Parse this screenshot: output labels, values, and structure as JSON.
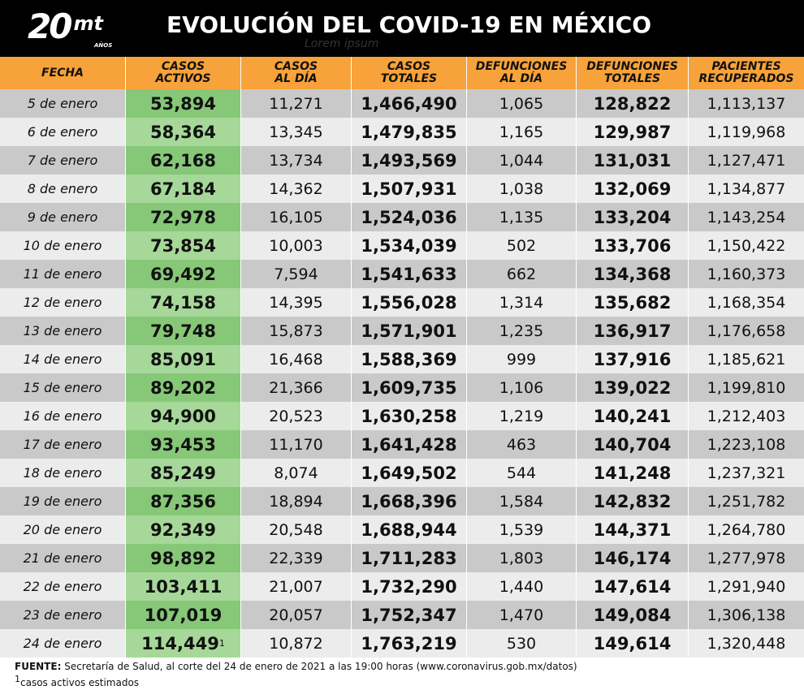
{
  "header": {
    "logo_number": "20",
    "logo_text": "mt",
    "logo_sub": "AÑOS",
    "title": "EVOLUCIÓN DEL COVID-19 EN MÉXICO",
    "subtitle": "Lorem ipsum"
  },
  "table": {
    "columns": [
      "FECHA",
      "CASOS\nACTIVOS",
      "CASOS\nAL DÍA",
      "CASOS\nTOTALES",
      "DEFUNCIONES\nAL DÍA",
      "DEFUNCIONES\nTOTALES",
      "PACIENTES\nRECUPERADOS"
    ],
    "rows": [
      [
        "5 de enero",
        "53,894",
        "11,271",
        "1,466,490",
        "1,065",
        "128,822",
        "1,113,137"
      ],
      [
        "6 de enero",
        "58,364",
        "13,345",
        "1,479,835",
        "1,165",
        "129,987",
        "1,119,968"
      ],
      [
        "7 de enero",
        "62,168",
        "13,734",
        "1,493,569",
        "1,044",
        "131,031",
        "1,127,471"
      ],
      [
        "8 de enero",
        "67,184",
        "14,362",
        "1,507,931",
        "1,038",
        "132,069",
        "1,134,877"
      ],
      [
        "9 de enero",
        "72,978",
        "16,105",
        "1,524,036",
        "1,135",
        "133,204",
        "1,143,254"
      ],
      [
        "10 de enero",
        "73,854",
        "10,003",
        "1,534,039",
        "502",
        "133,706",
        "1,150,422"
      ],
      [
        "11 de enero",
        "69,492",
        "7,594",
        "1,541,633",
        "662",
        "134,368",
        "1,160,373"
      ],
      [
        "12 de enero",
        "74,158",
        "14,395",
        "1,556,028",
        "1,314",
        "135,682",
        "1,168,354"
      ],
      [
        "13 de enero",
        "79,748",
        "15,873",
        "1,571,901",
        "1,235",
        "136,917",
        "1,176,658"
      ],
      [
        "14 de enero",
        "85,091",
        "16,468",
        "1,588,369",
        "999",
        "137,916",
        "1,185,621"
      ],
      [
        "15 de enero",
        "89,202",
        "21,366",
        "1,609,735",
        "1,106",
        "139,022",
        "1,199,810"
      ],
      [
        "16 de enero",
        "94,900",
        "20,523",
        "1,630,258",
        "1,219",
        "140,241",
        "1,212,403"
      ],
      [
        "17 de enero",
        "93,453",
        "11,170",
        "1,641,428",
        "463",
        "140,704",
        "1,223,108"
      ],
      [
        "18 de enero",
        "85,249",
        "8,074",
        "1,649,502",
        "544",
        "141,248",
        "1,237,321"
      ],
      [
        "19 de enero",
        "87,356",
        "18,894",
        "1,668,396",
        "1,584",
        "142,832",
        "1,251,782"
      ],
      [
        "20 de enero",
        "92,349",
        "20,548",
        "1,688,944",
        "1,539",
        "144,371",
        "1,264,780"
      ],
      [
        "21 de enero",
        "98,892",
        "22,339",
        "1,711,283",
        "1,803",
        "146,174",
        "1,277,978"
      ],
      [
        "22 de enero",
        "103,411",
        "21,007",
        "1,732,290",
        "1,440",
        "147,614",
        "1,291,940"
      ],
      [
        "23 de enero",
        "107,019",
        "20,057",
        "1,752,347",
        "1,470",
        "149,084",
        "1,306,138"
      ],
      [
        "24 de enero",
        "114,449",
        "10,872",
        "1,763,219",
        "530",
        "149,614",
        "1,320,448"
      ]
    ],
    "marker": "1"
  },
  "footer": {
    "source_label": "FUENTE:",
    "source_text": "Secretaría de Salud, al corte del 24 de enero de 2021 a las 19:00 horas (www.coronavirus.gob.mx/datos)",
    "note_marker": "1",
    "note": "casos activos estimados"
  }
}
